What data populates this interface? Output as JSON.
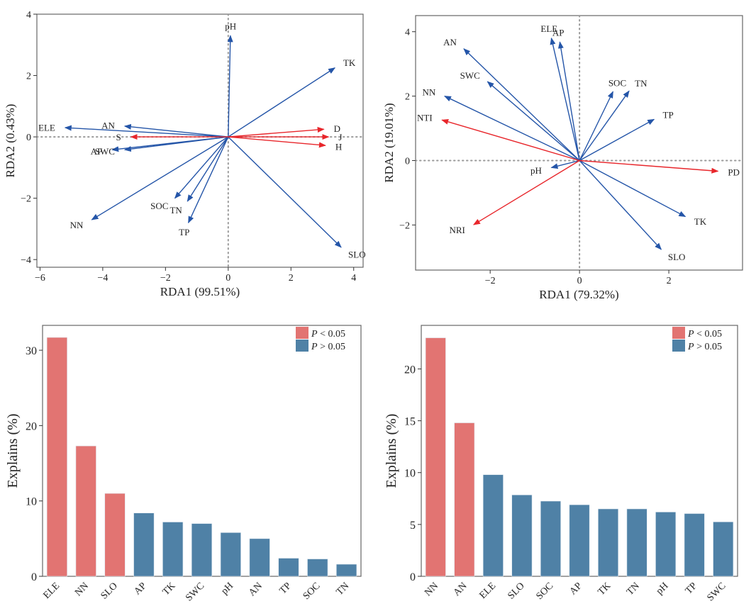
{
  "colors": {
    "env_arrow": "#2455a8",
    "resp_arrow": "#e8262b",
    "sig_bar": "#e27472",
    "nonsig_bar": "#4f81a6",
    "axis": "#666666",
    "refline": "#9a9a9a"
  },
  "chart_data": [
    {
      "id": "rda1",
      "type": "biplot",
      "xlabel": "RDA1 (99.51%)",
      "ylabel": "RDA2 (0.43%)",
      "xlim": [
        -6.1,
        4.3
      ],
      "ylim": [
        -4.25,
        4.0
      ],
      "xticks": [
        -6,
        -4,
        -2,
        0,
        2,
        4
      ],
      "yticks": [
        -4,
        -2,
        0,
        2,
        4
      ],
      "xtick_labels": [
        "−6",
        "−4",
        "−2",
        "0",
        "2",
        "4"
      ],
      "ytick_labels": [
        "−4",
        "−2",
        "0",
        "2",
        "4"
      ],
      "grid": false,
      "reference_lines": "dotted at x=0 and y=0",
      "response_vectors": [
        {
          "name": "D",
          "x": 3.05,
          "y": 0.25
        },
        {
          "name": "J",
          "x": 3.2,
          "y": 0.0
        },
        {
          "name": "H",
          "x": 3.1,
          "y": -0.28
        },
        {
          "name": "S",
          "x": -3.1,
          "y": 0.0
        }
      ],
      "env_vectors": [
        {
          "name": "pH",
          "x": 0.07,
          "y": 3.3
        },
        {
          "name": "TK",
          "x": 3.4,
          "y": 2.25
        },
        {
          "name": "ELE",
          "x": -5.2,
          "y": 0.3
        },
        {
          "name": "AN",
          "x": -3.3,
          "y": 0.35
        },
        {
          "name": "AP",
          "x": -3.7,
          "y": -0.42
        },
        {
          "name": "SWC",
          "x": -3.3,
          "y": -0.42
        },
        {
          "name": "NN",
          "x": -4.35,
          "y": -2.7
        },
        {
          "name": "SOC",
          "x": -1.7,
          "y": -2.0
        },
        {
          "name": "TN",
          "x": -1.3,
          "y": -2.1
        },
        {
          "name": "TP",
          "x": -1.27,
          "y": -2.8
        },
        {
          "name": "SLO",
          "x": 3.6,
          "y": -3.6
        }
      ]
    },
    {
      "id": "rda2",
      "type": "biplot",
      "xlabel": "RDA1 (79.32%)",
      "ylabel": "RDA2 (19.01%)",
      "xlim": [
        -3.67,
        3.65
      ],
      "ylim": [
        -3.4,
        4.5
      ],
      "xticks": [
        -2,
        0,
        2
      ],
      "yticks": [
        -2,
        0,
        2,
        4
      ],
      "xtick_labels": [
        "−2",
        "0",
        "2"
      ],
      "ytick_labels": [
        "−2",
        "0",
        "2",
        "4"
      ],
      "grid": false,
      "reference_lines": "dotted at x=0 and y=0",
      "response_vectors": [
        {
          "name": "NTI",
          "x": -3.08,
          "y": 1.26
        },
        {
          "name": "PD",
          "x": 3.1,
          "y": -0.33
        },
        {
          "name": "NRI",
          "x": -2.37,
          "y": -1.99
        }
      ],
      "env_vectors": [
        {
          "name": "AN",
          "x": -2.59,
          "y": 3.47
        },
        {
          "name": "ELE",
          "x": -0.63,
          "y": 3.8
        },
        {
          "name": "AP",
          "x": -0.44,
          "y": 3.68
        },
        {
          "name": "SWC",
          "x": -2.06,
          "y": 2.45
        },
        {
          "name": "NN",
          "x": -3.02,
          "y": 2.0
        },
        {
          "name": "SOC",
          "x": 0.75,
          "y": 2.14
        },
        {
          "name": "TN",
          "x": 1.11,
          "y": 2.16
        },
        {
          "name": "TP",
          "x": 1.67,
          "y": 1.28
        },
        {
          "name": "pH",
          "x": -0.63,
          "y": -0.22
        },
        {
          "name": "TK",
          "x": 2.37,
          "y": -1.74
        },
        {
          "name": "SLO",
          "x": 1.83,
          "y": -2.76
        }
      ]
    },
    {
      "id": "bar1",
      "type": "bar",
      "ylabel": "Explains (%)",
      "xlabel": "",
      "ylim": [
        0,
        33.3
      ],
      "yticks": [
        0,
        10,
        20,
        30
      ],
      "categories": [
        "ELE",
        "NN",
        "SLO",
        "AP",
        "TK",
        "SWC",
        "pH",
        "AN",
        "TP",
        "SOC",
        "TN"
      ],
      "values": [
        31.7,
        17.3,
        11.0,
        8.4,
        7.2,
        7.0,
        5.8,
        5.0,
        2.4,
        2.3,
        1.6
      ],
      "significant": [
        true,
        true,
        true,
        false,
        false,
        false,
        false,
        false,
        false,
        false,
        false
      ],
      "legend": {
        "position": "top-right",
        "entries": [
          {
            "p": "P",
            "text": "< 0.05",
            "key": "sig"
          },
          {
            "p": "P",
            "text": "> 0.05",
            "key": "nonsig"
          }
        ]
      },
      "grid": false
    },
    {
      "id": "bar2",
      "type": "bar",
      "ylabel": "Explains (%)",
      "xlabel": "",
      "ylim": [
        0,
        24.2
      ],
      "yticks": [
        0,
        5,
        10,
        15,
        20
      ],
      "categories": [
        "NN",
        "AN",
        "ELE",
        "SLO",
        "SOC",
        "AP",
        "TK",
        "TN",
        "pH",
        "TP",
        "SWC"
      ],
      "values": [
        23.0,
        14.8,
        9.8,
        7.85,
        7.25,
        6.9,
        6.5,
        6.5,
        6.2,
        6.05,
        5.25
      ],
      "significant": [
        true,
        true,
        false,
        false,
        false,
        false,
        false,
        false,
        false,
        false,
        false
      ],
      "legend": {
        "position": "top-right",
        "entries": [
          {
            "p": "P",
            "text": "< 0.05",
            "key": "sig"
          },
          {
            "p": "P",
            "text": "> 0.05",
            "key": "nonsig"
          }
        ]
      },
      "grid": false
    }
  ]
}
